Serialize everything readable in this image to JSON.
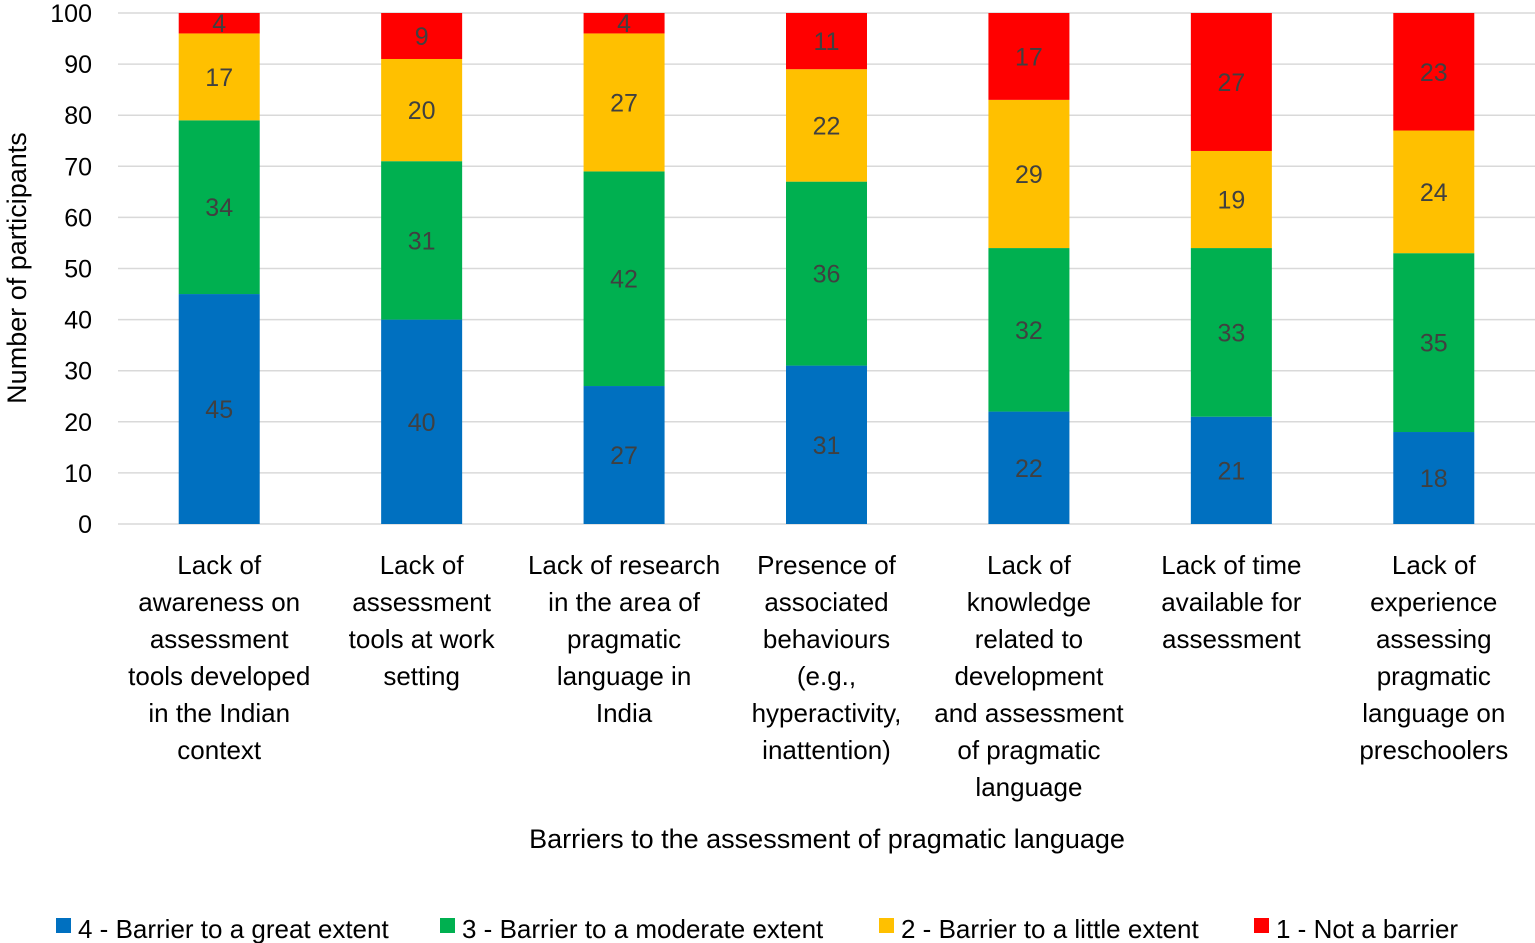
{
  "chart_data": {
    "type": "bar",
    "stacked": true,
    "title": "",
    "xlabel": "Barriers to the assessment of pragmatic language",
    "ylabel": "Number of participants",
    "ylim": [
      0,
      100
    ],
    "yticks": [
      0,
      10,
      20,
      30,
      40,
      50,
      60,
      70,
      80,
      90,
      100
    ],
    "grid": "horizontal",
    "legend_position": "bottom",
    "categories": [
      [
        "Lack of",
        "awareness on",
        "assessment",
        "tools developed",
        "in the Indian",
        "context"
      ],
      [
        "Lack of",
        "assessment",
        "tools at work",
        "setting"
      ],
      [
        "Lack of research",
        "in the area of",
        "pragmatic",
        "language in",
        "India"
      ],
      [
        "Presence of",
        "associated",
        "behaviours",
        "(e.g.,",
        "hyperactivity,",
        "inattention)"
      ],
      [
        "Lack of",
        "knowledge",
        "related to",
        "development",
        "and assessment",
        "of pragmatic",
        "language"
      ],
      [
        "Lack of time",
        "available for",
        "assessment"
      ],
      [
        "Lack of",
        "experience",
        "assessing",
        "pragmatic",
        "language on",
        "preschoolers"
      ]
    ],
    "series": [
      {
        "name": "4 - Barrier to a great extent",
        "color": "#0070C0",
        "values": [
          45,
          40,
          27,
          31,
          22,
          21,
          18
        ]
      },
      {
        "name": "3 - Barrier to a moderate extent",
        "color": "#00B050",
        "values": [
          34,
          31,
          42,
          36,
          32,
          33,
          35
        ]
      },
      {
        "name": "2 - Barrier to a little extent",
        "color": "#FFC000",
        "values": [
          17,
          20,
          27,
          22,
          29,
          19,
          24
        ]
      },
      {
        "name": "1 - Not a barrier",
        "color": "#FF0000",
        "values": [
          4,
          9,
          4,
          11,
          17,
          27,
          23
        ]
      }
    ]
  }
}
